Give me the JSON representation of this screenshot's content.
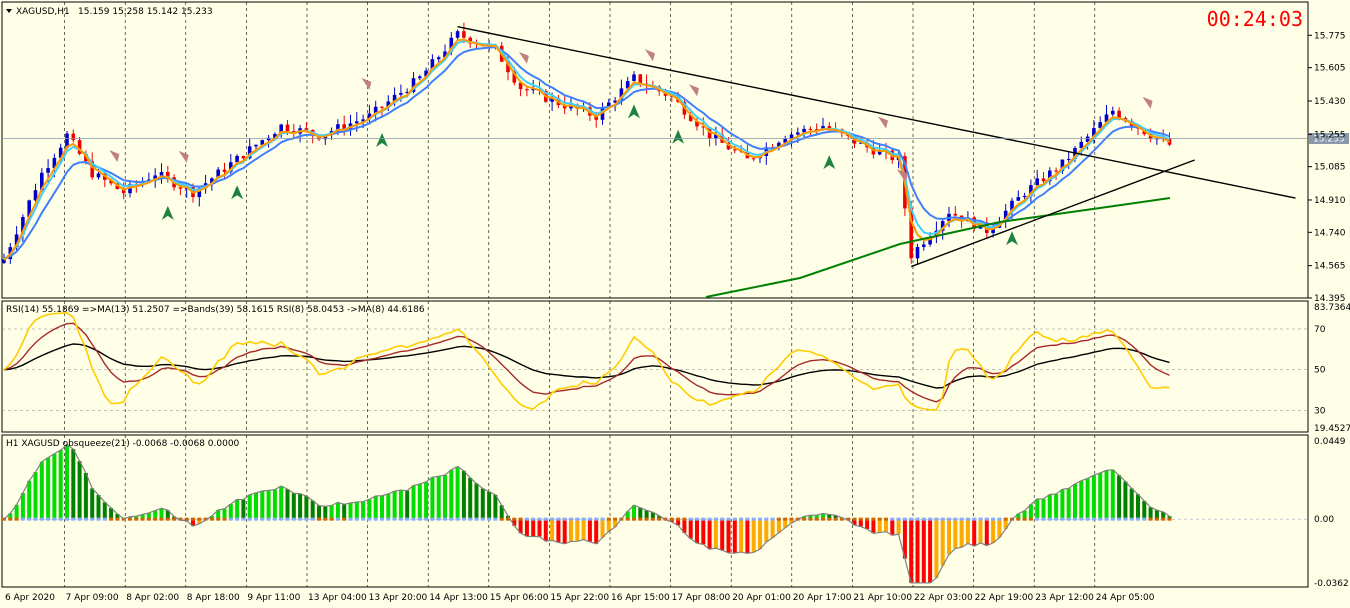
{
  "header": {
    "symbol": "XAGUSD,H1",
    "ohlc": "15.159 15.258 15.142 15.233",
    "timer": "00:24:03"
  },
  "chart_data": [
    {
      "type": "candlestick",
      "title": "XAGUSD,H1",
      "ylim": [
        14.395,
        15.95
      ],
      "y_ticks": [
        "15.775",
        "15.605",
        "15.430",
        "15.255",
        "15.085",
        "14.910",
        "14.740",
        "14.565",
        "14.395"
      ],
      "current_price": "15.233",
      "x_labels": [
        "6 Apr 2020",
        "7 Apr 09:00",
        "8 Apr 02:00",
        "8 Apr 18:00",
        "9 Apr 11:00",
        "13 Apr 04:00",
        "13 Apr 20:00",
        "14 Apr 13:00",
        "15 Apr 06:00",
        "15 Apr 22:00",
        "16 Apr 15:00",
        "17 Apr 08:00",
        "20 Apr 01:00",
        "20 Apr 17:00",
        "21 Apr 10:00",
        "22 Apr 03:00",
        "22 Apr 19:00",
        "23 Apr 12:00",
        "24 Apr 05:00"
      ],
      "price_path": [
        [
          0,
          14.6
        ],
        [
          6,
          15.05
        ],
        [
          10,
          15.25
        ],
        [
          14,
          15.05
        ],
        [
          19,
          14.95
        ],
        [
          24,
          15.05
        ],
        [
          30,
          14.95
        ],
        [
          36,
          15.1
        ],
        [
          44,
          15.3
        ],
        [
          50,
          15.25
        ],
        [
          58,
          15.35
        ],
        [
          66,
          15.55
        ],
        [
          72,
          15.78
        ],
        [
          78,
          15.7
        ],
        [
          82,
          15.5
        ],
        [
          88,
          15.42
        ],
        [
          94,
          15.35
        ],
        [
          100,
          15.55
        ],
        [
          106,
          15.45
        ],
        [
          112,
          15.25
        ],
        [
          118,
          15.12
        ],
        [
          124,
          15.25
        ],
        [
          130,
          15.3
        ],
        [
          136,
          15.2
        ],
        [
          142,
          15.12
        ],
        [
          144,
          14.62
        ],
        [
          150,
          14.85
        ],
        [
          156,
          14.75
        ],
        [
          162,
          14.95
        ],
        [
          168,
          15.1
        ],
        [
          176,
          15.38
        ],
        [
          182,
          15.25
        ],
        [
          185,
          15.2
        ]
      ],
      "series": [
        {
          "name": "MA fast (orange)",
          "color": "#ff9900"
        },
        {
          "name": "MA (cyan)",
          "color": "#40d0ff"
        },
        {
          "name": "MA (blue)",
          "color": "#4080ff"
        },
        {
          "name": "MA long (green)",
          "color": "#008000"
        }
      ],
      "trendlines": [
        {
          "from": [
            72,
            15.82
          ],
          "to": [
            205,
            14.92
          ],
          "color": "#000000"
        },
        {
          "from": [
            144,
            14.56
          ],
          "to": [
            189,
            15.12
          ],
          "color": "#000000"
        }
      ]
    },
    {
      "type": "line",
      "title": "RSI(14) 55.1869 =>MA(13) 51.2507 =>Bands(39) 58.1615 RSI(8) 58.0453 ->MA(8) 44.6186",
      "ylim": [
        19.4527,
        83.7364
      ],
      "y_ticks": [
        "83.7364",
        "70",
        "50",
        "30",
        "19.4527"
      ],
      "levels": [
        70,
        50,
        30
      ],
      "series": [
        {
          "name": "RSI(8)",
          "color": "#ffcc00"
        },
        {
          "name": "MA",
          "color": "#a52a2a"
        },
        {
          "name": "Bands",
          "color": "#000000"
        }
      ]
    },
    {
      "type": "bar",
      "title": "H1 XAGUSD obsqueeze(21) -0.0068 -0.0068 0.0000",
      "ylim": [
        -0.0362,
        0.0449
      ],
      "y_ticks": [
        "0.0449",
        "0.00",
        "-0.0362"
      ],
      "series": [
        {
          "name": "positive",
          "color": "#00c000"
        },
        {
          "name": "negative",
          "color": "#ff0000"
        }
      ]
    }
  ]
}
